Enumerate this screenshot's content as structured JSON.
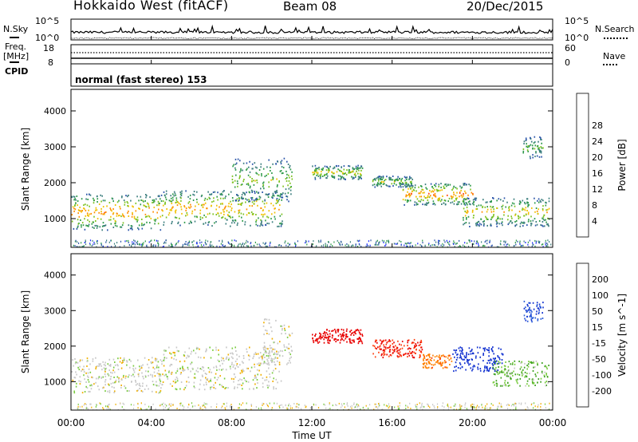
{
  "header": {
    "title": "Hokkaido West (fitACF)",
    "beam": "Beam 08",
    "date": "20/Dec/2015"
  },
  "status_panels": {
    "nsky": {
      "label": "N.Sky",
      "ytick_top": "10^5",
      "ytick_bottom": "10^0"
    },
    "nsearch": {
      "label": "N.Search",
      "ytick_top": "10^5",
      "ytick_bottom": "10^0"
    },
    "freq": {
      "label_line1": "Freq.",
      "label_line2": "[MHz]",
      "ytick_top": "18",
      "ytick_bottom": "8"
    },
    "nave": {
      "label": "Nave",
      "ytick_top": "60",
      "ytick_bottom": "0"
    },
    "cpid": {
      "label": "CPID",
      "text": "normal (fast stereo) 153"
    }
  },
  "chart_data": [
    {
      "type": "heatmap",
      "quantity": "power",
      "ylabel": "Slant Range [km]",
      "xlabel": "",
      "x_tick_labels": [],
      "ylim": [
        200,
        4600
      ],
      "y_ticks": [
        1000,
        2000,
        3000,
        4000
      ],
      "y_tick_labels": [
        "1000",
        "2000",
        "3000",
        "4000"
      ],
      "colorbar": {
        "label": "Power [dB]",
        "tick_labels": [
          "4",
          "8",
          "12",
          "16",
          "20",
          "24",
          "28"
        ],
        "colors": [
          "#1a2aff",
          "#2b55aa",
          "#3d7f7f",
          "#2e9a4a",
          "#7dc220",
          "#f0c000",
          "#ff8f00",
          "#ff4a10",
          "#e80000"
        ]
      },
      "bands": [
        {
          "t0": 0.0,
          "t1": 4.5,
          "r0": 700,
          "r1": 1700,
          "peak": 25
        },
        {
          "t0": 4.5,
          "t1": 10.5,
          "r0": 800,
          "r1": 1800,
          "peak": 24
        },
        {
          "t0": 8.0,
          "t1": 11.0,
          "r0": 1500,
          "r1": 2700,
          "peak": 18
        },
        {
          "t0": 12.0,
          "t1": 14.5,
          "r0": 2100,
          "r1": 2500,
          "peak": 20
        },
        {
          "t0": 15.0,
          "t1": 17.0,
          "r0": 1900,
          "r1": 2200,
          "peak": 18
        },
        {
          "t0": 16.5,
          "t1": 20.0,
          "r0": 1400,
          "r1": 2000,
          "peak": 26
        },
        {
          "t0": 19.5,
          "t1": 23.8,
          "r0": 800,
          "r1": 1600,
          "peak": 22
        },
        {
          "t0": 22.5,
          "t1": 23.5,
          "r0": 2700,
          "r1": 3300,
          "peak": 16
        }
      ]
    },
    {
      "type": "heatmap",
      "quantity": "velocity",
      "ylabel": "Slant Range [km]",
      "xlabel": "Time UT",
      "ylim": [
        200,
        4600
      ],
      "y_ticks": [
        1000,
        2000,
        3000,
        4000
      ],
      "y_tick_labels": [
        "1000",
        "2000",
        "3000",
        "4000"
      ],
      "x_ticks": [
        0,
        4,
        8,
        12,
        16,
        20,
        24
      ],
      "x_tick_labels": [
        "00:00",
        "04:00",
        "08:00",
        "12:00",
        "16:00",
        "20:00",
        "00:00"
      ],
      "colorbar": {
        "label": "Velocity [m s^-1]",
        "tick_labels": [
          "200",
          "100",
          "50",
          "15",
          "-15",
          "-50",
          "-100",
          "-200"
        ],
        "colors": [
          "#1030d0",
          "#2a5cd8",
          "#3da020",
          "#7acc40",
          "#c8c8c8",
          "#f0b000",
          "#ff8000",
          "#ff4010",
          "#e80000"
        ]
      },
      "bands": [
        {
          "t0": 0.0,
          "t1": 4.5,
          "r0": 700,
          "r1": 1700,
          "vel": 0
        },
        {
          "t0": 4.5,
          "t1": 10.5,
          "r0": 800,
          "r1": 2000,
          "vel": 0
        },
        {
          "t0": 9.5,
          "t1": 11.0,
          "r0": 1500,
          "r1": 2800,
          "vel": 0
        },
        {
          "t0": 12.0,
          "t1": 14.5,
          "r0": 2100,
          "r1": 2500,
          "vel": -200
        },
        {
          "t0": 15.0,
          "t1": 17.5,
          "r0": 1700,
          "r1": 2200,
          "vel": -150
        },
        {
          "t0": 17.5,
          "t1": 19.0,
          "r0": 1400,
          "r1": 1800,
          "vel": -60
        },
        {
          "t0": 19.0,
          "t1": 21.5,
          "r0": 1300,
          "r1": 2000,
          "vel": 180
        },
        {
          "t0": 21.0,
          "t1": 23.8,
          "r0": 900,
          "r1": 1600,
          "vel": 30
        },
        {
          "t0": 22.5,
          "t1": 23.5,
          "r0": 2700,
          "r1": 3300,
          "vel": 150
        }
      ]
    }
  ]
}
